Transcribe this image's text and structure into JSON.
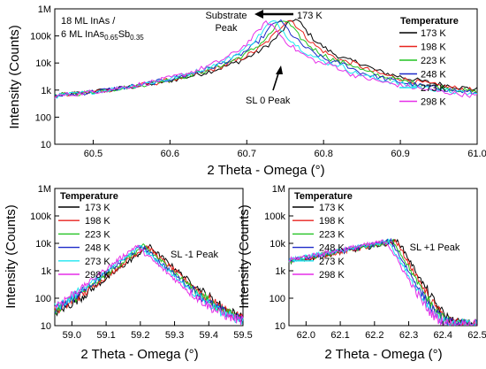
{
  "chart_data": [
    {
      "type": "line",
      "xlabel": "2 Theta - Omega (°)",
      "ylabel": "Intensity (Counts)",
      "xlim": [
        60.45,
        61.0
      ],
      "ylim": [
        10,
        1000000
      ],
      "yscale": "log",
      "xticks": [
        "60.5",
        "60.6",
        "60.7",
        "60.8",
        "60.9",
        "61.0"
      ],
      "yticks": [
        "10",
        "100",
        "1k",
        "10k",
        "100k",
        "1M"
      ],
      "sample_label_line1": "18 ML InAs /",
      "sample_label_line2_prefix": "6 ML InAs",
      "sample_label_sub1": "0.65",
      "sample_label_mid": "Sb",
      "sample_label_sub2": "0.35",
      "annotations": {
        "substrate_line1": "Substrate",
        "substrate_line2": "Peak",
        "temp_arrow": "173 K",
        "sl0": "SL 0 Peak"
      },
      "legend_title": "Temperature",
      "legend_position": "top-right",
      "series": [
        {
          "name": "173 K",
          "color": "#000000",
          "peak_x": 60.762,
          "peak_y": 400000
        },
        {
          "name": "198 K",
          "color": "#e8231e",
          "peak_x": 60.755,
          "peak_y": 380000
        },
        {
          "name": "223 K",
          "color": "#22c322",
          "peak_x": 60.748,
          "peak_y": 360000
        },
        {
          "name": "248 K",
          "color": "#1f2bc9",
          "peak_x": 60.741,
          "peak_y": 340000
        },
        {
          "name": "273 K",
          "color": "#1ee6f0",
          "peak_x": 60.734,
          "peak_y": 320000
        },
        {
          "name": "298 K",
          "color": "#e62fe8",
          "peak_x": 60.727,
          "peak_y": 300000
        }
      ]
    },
    {
      "type": "line",
      "xlabel": "2 Theta - Omega (°)",
      "ylabel": "Intensity (Counts)",
      "xlim": [
        58.95,
        59.5
      ],
      "ylim": [
        10,
        1000000
      ],
      "yscale": "log",
      "xticks": [
        "59.0",
        "59.1",
        "59.2",
        "59.3",
        "59.4",
        "59.5"
      ],
      "yticks": [
        "10",
        "100",
        "1k",
        "10k",
        "100k",
        "1M"
      ],
      "annotation": "SL -1 Peak",
      "legend_title": "Temperature",
      "legend_position": "top-left",
      "series": [
        {
          "name": "173 K",
          "color": "#000000",
          "peak_x": 59.225,
          "peak_y": 8000
        },
        {
          "name": "198 K",
          "color": "#e8231e",
          "peak_x": 59.217,
          "peak_y": 8000
        },
        {
          "name": "223 K",
          "color": "#22c322",
          "peak_x": 59.21,
          "peak_y": 8000
        },
        {
          "name": "248 K",
          "color": "#1f2bc9",
          "peak_x": 59.203,
          "peak_y": 8000
        },
        {
          "name": "273 K",
          "color": "#1ee6f0",
          "peak_x": 59.196,
          "peak_y": 8000
        },
        {
          "name": "298 K",
          "color": "#e62fe8",
          "peak_x": 59.188,
          "peak_y": 8000
        }
      ]
    },
    {
      "type": "line",
      "xlabel": "2 Theta - Omega (°)",
      "ylabel": "Intensity (Counts)",
      "xlim": [
        61.95,
        62.5
      ],
      "ylim": [
        10,
        1000000
      ],
      "yscale": "log",
      "xticks": [
        "62.0",
        "62.1",
        "62.2",
        "62.3",
        "62.4",
        "62.5"
      ],
      "yticks": [
        "10",
        "100",
        "1k",
        "10k",
        "100k",
        "1M"
      ],
      "annotation": "SL +1 Peak",
      "legend_title": "Temperature",
      "legend_position": "top-left",
      "series": [
        {
          "name": "173 K",
          "color": "#000000",
          "peak_x": 62.27,
          "peak_y": 12000
        },
        {
          "name": "198 K",
          "color": "#e8231e",
          "peak_x": 62.263,
          "peak_y": 12000
        },
        {
          "name": "223 K",
          "color": "#22c322",
          "peak_x": 62.256,
          "peak_y": 12000
        },
        {
          "name": "248 K",
          "color": "#1f2bc9",
          "peak_x": 62.249,
          "peak_y": 12000
        },
        {
          "name": "273 K",
          "color": "#1ee6f0",
          "peak_x": 62.242,
          "peak_y": 12000
        },
        {
          "name": "298 K",
          "color": "#e62fe8",
          "peak_x": 62.235,
          "peak_y": 12000
        }
      ]
    }
  ]
}
